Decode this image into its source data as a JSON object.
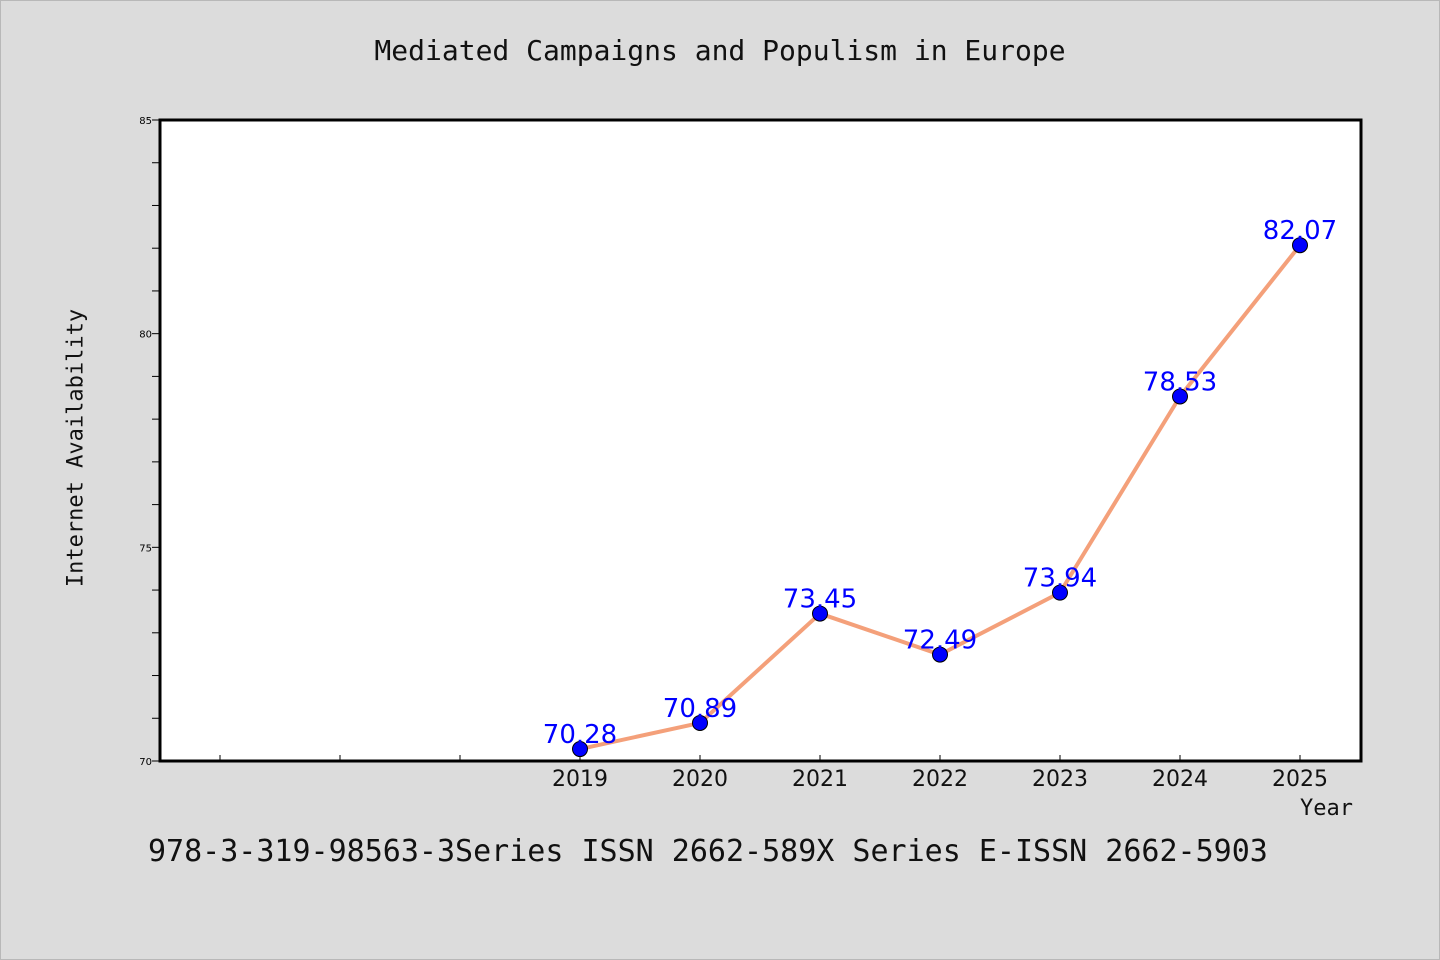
{
  "page": {
    "footer_note": "978-3-319-98563-3Series ISSN 2662-589X Series E-ISSN 2662-5903"
  },
  "chart_data": {
    "type": "line",
    "title": "Mediated Campaigns and Populism in Europe",
    "xlabel": "Year",
    "ylabel": "Internet Availability",
    "categories": [
      "2019",
      "2020",
      "2021",
      "2022",
      "2023",
      "2024",
      "2025"
    ],
    "series": [
      {
        "values": [
          70.28,
          70.89,
          73.45,
          72.49,
          73.94,
          78.53,
          82.07
        ],
        "labels": [
          "70.28",
          "70.89",
          "73.45",
          "72.49",
          "73.94",
          "78.53",
          "82.07"
        ]
      }
    ],
    "ylim": [
      70,
      85
    ],
    "y_ticks": [
      "70",
      "75",
      "80",
      "85"
    ],
    "grid": false,
    "legend": "none",
    "colors": {
      "line": "#f4a07a",
      "marker": "#0000ff",
      "label": "#0000ff",
      "plot_bg": "#ffffff",
      "page_bg": "#dcdcdc"
    }
  }
}
